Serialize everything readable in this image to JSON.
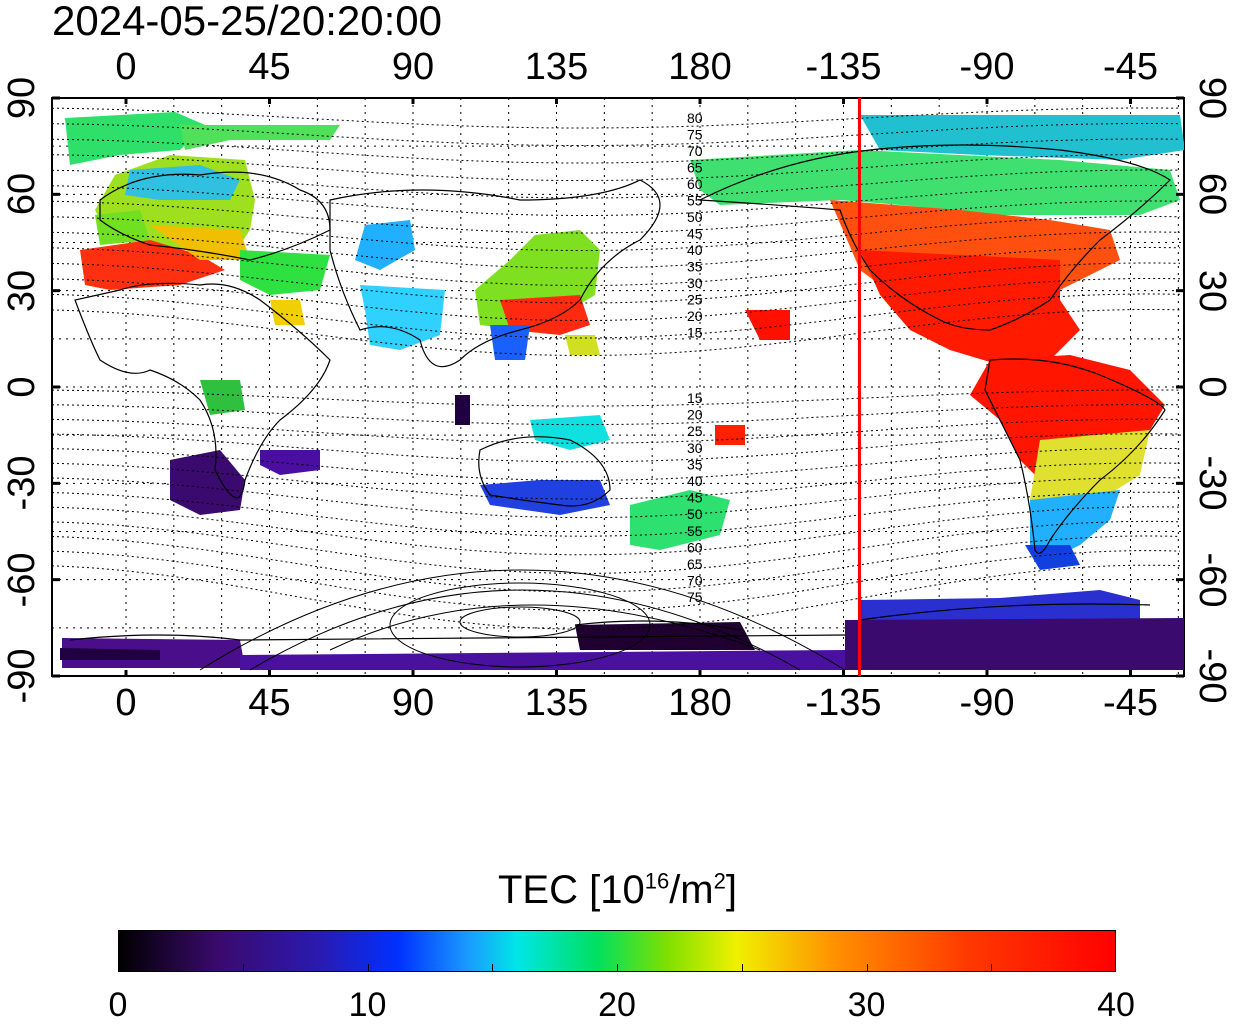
{
  "timestamp": "2024-05-25/20:20:00",
  "map": {
    "lon_ticks_top": [
      "0",
      "45",
      "90",
      "135",
      "180",
      "-135",
      "-90",
      "-45"
    ],
    "lon_ticks_bottom": [
      "0",
      "45",
      "90",
      "135",
      "180",
      "-135",
      "-90",
      "-45"
    ],
    "lat_ticks_left": [
      "90",
      "60",
      "30",
      "0",
      "-30",
      "-60",
      "-90"
    ],
    "lat_ticks_right": [
      "90",
      "60",
      "30",
      "0",
      "-30",
      "-60",
      "-90"
    ],
    "contour_labels_north": [
      "80",
      "75",
      "70",
      "65",
      "60",
      "55",
      "50",
      "45",
      "40",
      "35",
      "30",
      "25",
      "20",
      "15"
    ],
    "contour_labels_south": [
      "15",
      "20",
      "25",
      "30",
      "35",
      "40",
      "45",
      "50",
      "55",
      "60",
      "65",
      "70",
      "75"
    ],
    "terminator_line_color": "#ff0000",
    "terminator_longitude": -130
  },
  "colorbar": {
    "title_prefix": "TEC  [10",
    "title_exp": "16",
    "title_mid": "/m",
    "title_exp2": "2",
    "title_suffix": "]",
    "ticks": [
      "0",
      "10",
      "20",
      "30",
      "40"
    ],
    "range": [
      0,
      40
    ]
  }
}
